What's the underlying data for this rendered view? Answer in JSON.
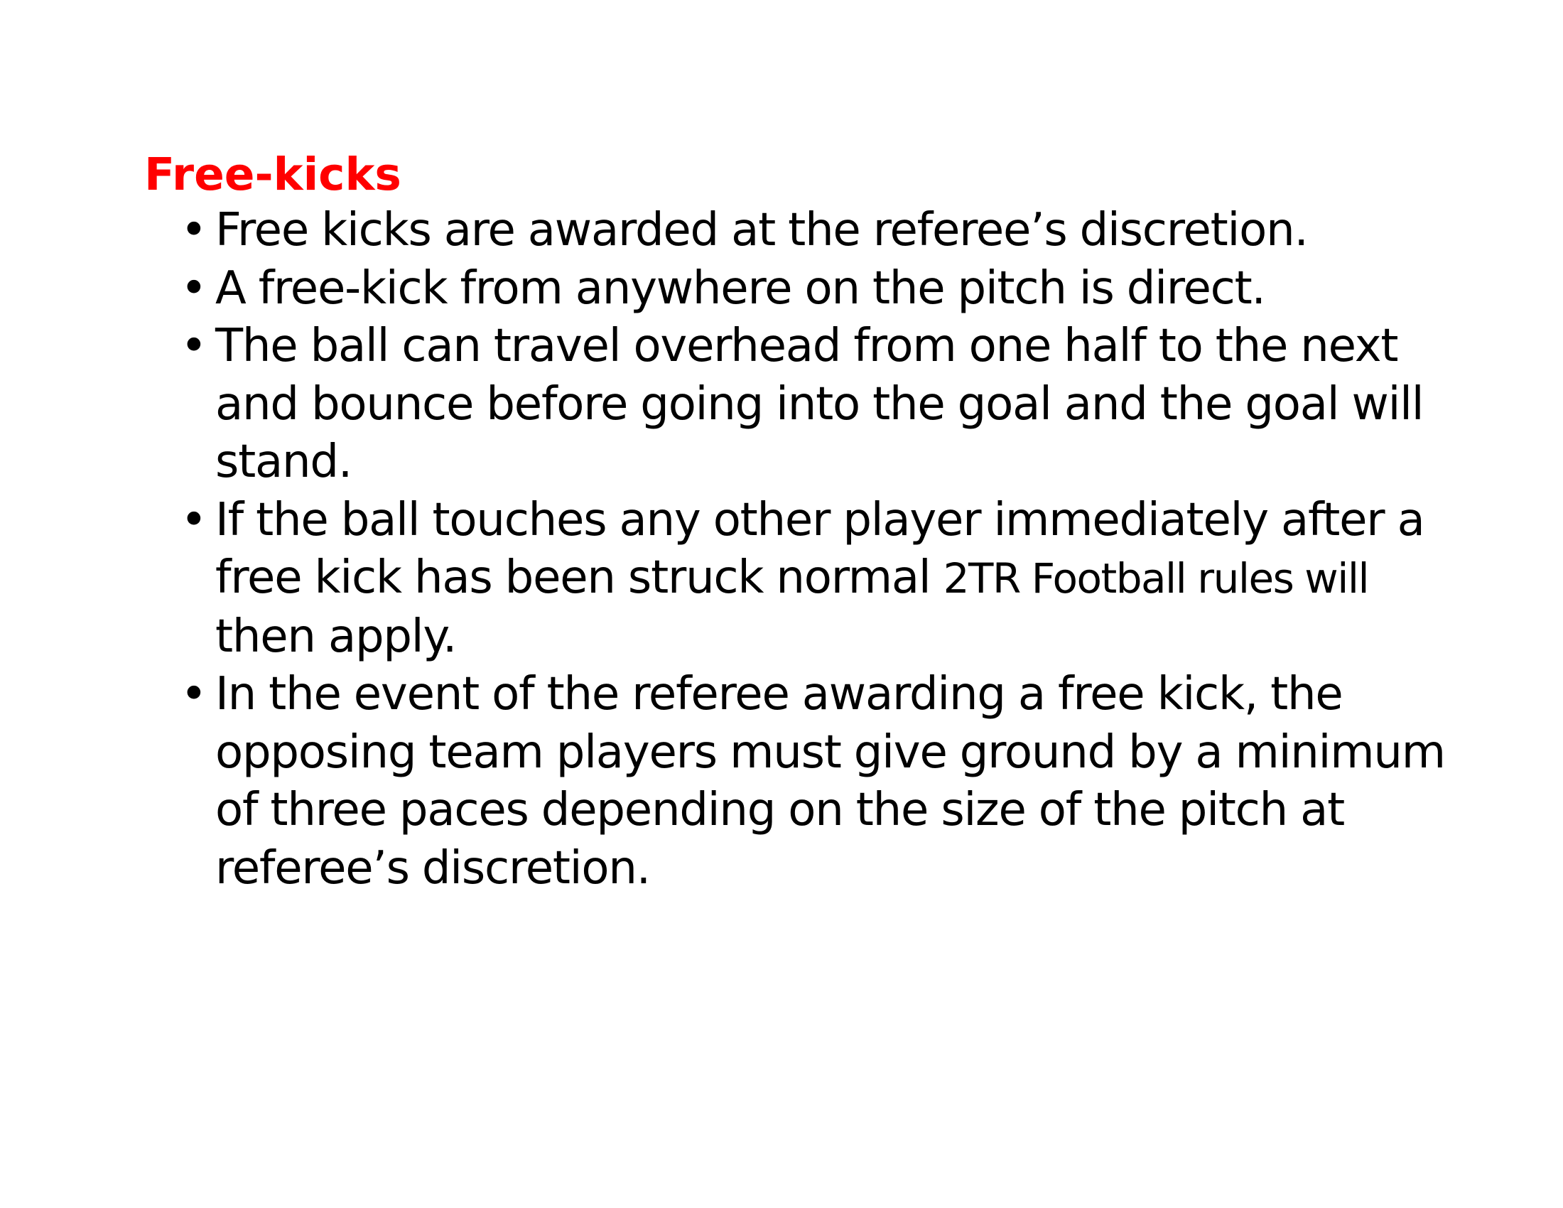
{
  "title": "Free-kicks",
  "bullet_glyph": "•",
  "rules": [
    {
      "lines": [
        "Free kicks are awarded at the referee’s discretion."
      ]
    },
    {
      "lines": [
        "A free-kick from anywhere on the pitch is direct."
      ]
    },
    {
      "lines": [
        "The ball can travel overhead from one half to the next",
        "and bounce before going into the goal and the goal will",
        "stand."
      ]
    },
    {
      "lines": [
        "If the ball touches any other player immediately after a",
        "free kick has been struck normal ",
        "2TR Football rules will",
        "then apply."
      ]
    },
    {
      "lines": [
        "In the event of the referee awarding a free kick, the",
        "opposing team players must give ground by a minimum",
        "of three paces depending on the size of the pitch at",
        "referee’s discretion."
      ]
    }
  ]
}
